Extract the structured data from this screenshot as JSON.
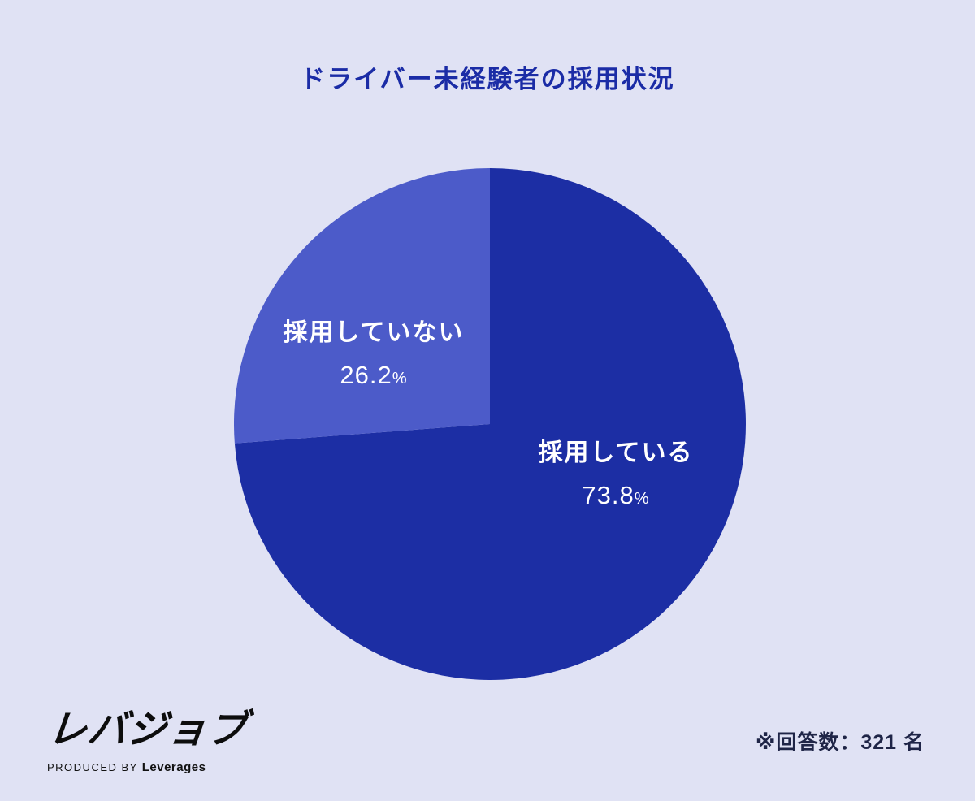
{
  "title": "ドライバー未経験者の採用状況",
  "chart_data": {
    "type": "pie",
    "title": "ドライバー未経験者の採用状況",
    "unit": "%",
    "start_angle": "12-oclock",
    "direction": "clockwise",
    "slices": [
      {
        "id": "hiring",
        "label": "採用している",
        "value": 73.8,
        "color": "#1c2ea4"
      },
      {
        "id": "not-hiring",
        "label": "採用していない",
        "value": 26.2,
        "color": "#4c5bc9"
      }
    ],
    "legend": "none",
    "sample_size": 321,
    "sample_note": "※回答数：321 名"
  },
  "slice_labels": {
    "hiring": {
      "name": "採用している",
      "value": "73.8",
      "unit": "%"
    },
    "not_hiring": {
      "name": "採用していない",
      "value": "26.2",
      "unit": "%"
    }
  },
  "footer": {
    "logo": "レバジョブ",
    "produced_by": "PRODUCED BY ",
    "company": "Leverages",
    "note": "※回答数：321 名"
  },
  "colors": {
    "background": "#e0e2f4",
    "title": "#1b2ca6",
    "slice_hiring": "#1c2ea4",
    "slice_not_hiring": "#4c5bc9",
    "label_text": "#ffffff"
  }
}
